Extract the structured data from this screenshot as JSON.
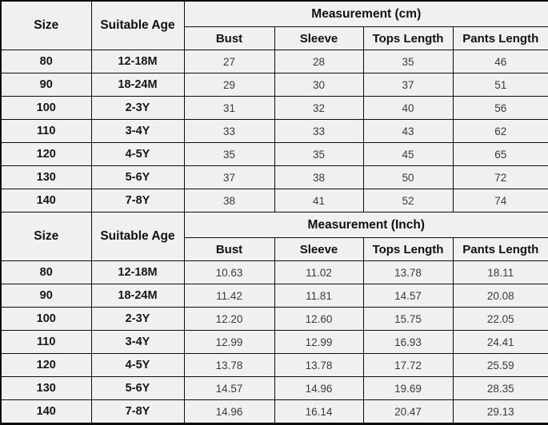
{
  "table": {
    "columns": {
      "size_label": "Size",
      "age_label": "Suitable Age",
      "sub_headers": [
        "Bust",
        "Sleeve",
        "Tops Length",
        "Pants Length"
      ]
    },
    "sections": [
      {
        "group_label": "Measurement (cm)",
        "rows": [
          [
            "80",
            "12-18M",
            "27",
            "28",
            "35",
            "46"
          ],
          [
            "90",
            "18-24M",
            "29",
            "30",
            "37",
            "51"
          ],
          [
            "100",
            "2-3Y",
            "31",
            "32",
            "40",
            "56"
          ],
          [
            "110",
            "3-4Y",
            "33",
            "33",
            "43",
            "62"
          ],
          [
            "120",
            "4-5Y",
            "35",
            "35",
            "45",
            "65"
          ],
          [
            "130",
            "5-6Y",
            "37",
            "38",
            "50",
            "72"
          ],
          [
            "140",
            "7-8Y",
            "38",
            "41",
            "52",
            "74"
          ]
        ]
      },
      {
        "group_label": "Measurement (Inch)",
        "rows": [
          [
            "80",
            "12-18M",
            "10.63",
            "11.02",
            "13.78",
            "18.11"
          ],
          [
            "90",
            "18-24M",
            "11.42",
            "11.81",
            "14.57",
            "20.08"
          ],
          [
            "100",
            "2-3Y",
            "12.20",
            "12.60",
            "15.75",
            "22.05"
          ],
          [
            "110",
            "3-4Y",
            "12.99",
            "12.99",
            "16.93",
            "24.41"
          ],
          [
            "120",
            "4-5Y",
            "13.78",
            "13.78",
            "17.72",
            "25.59"
          ],
          [
            "130",
            "5-6Y",
            "14.57",
            "14.96",
            "19.69",
            "28.35"
          ],
          [
            "140",
            "7-8Y",
            "14.96",
            "16.14",
            "20.47",
            "29.13"
          ]
        ]
      }
    ],
    "colors": {
      "background": "#f0f0f0",
      "border": "#0d0d0d",
      "header_text": "#111111",
      "value_text": "#3a3a3a"
    }
  }
}
